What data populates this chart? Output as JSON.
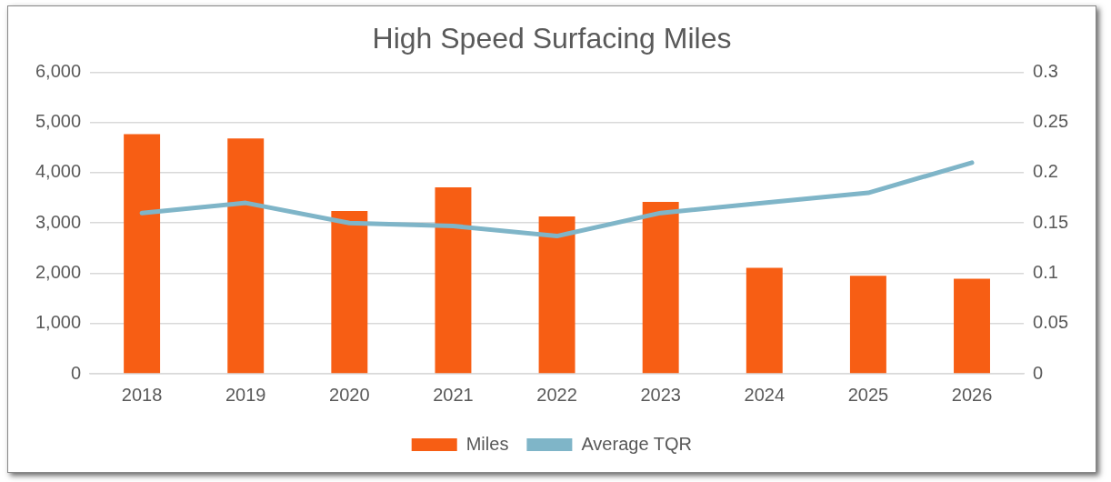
{
  "chart_data": {
    "type": "bar",
    "title": "High Speed Surfacing Miles",
    "categories": [
      "2018",
      "2019",
      "2020",
      "2021",
      "2022",
      "2023",
      "2024",
      "2025",
      "2026"
    ],
    "series": [
      {
        "name": "Miles",
        "color": "#f75e14",
        "values": [
          4770,
          4680,
          3240,
          3710,
          3130,
          3420,
          2110,
          1950,
          1890
        ]
      },
      {
        "name": "Average TQR",
        "type": "line",
        "axis": "y2",
        "color": "#7fb5c8",
        "values": [
          0.16,
          0.17,
          0.15,
          0.147,
          0.137,
          0.16,
          0.17,
          0.18,
          0.21
        ]
      }
    ],
    "ylim": [
      0,
      6000
    ],
    "yticks": [
      {
        "value": 0,
        "label": "0"
      },
      {
        "value": 1000,
        "label": "1,000"
      },
      {
        "value": 2000,
        "label": "2,000"
      },
      {
        "value": 3000,
        "label": "3,000"
      },
      {
        "value": 4000,
        "label": "4,000"
      },
      {
        "value": 5000,
        "label": "5,000"
      },
      {
        "value": 6000,
        "label": "6,000"
      }
    ],
    "y2lim": [
      0,
      0.3
    ],
    "y2ticks": [
      0,
      0.05,
      0.1,
      0.15,
      0.2,
      0.25,
      0.3
    ],
    "grid": "y",
    "legend": "bottom",
    "marker": "none",
    "line_style": "solid"
  }
}
